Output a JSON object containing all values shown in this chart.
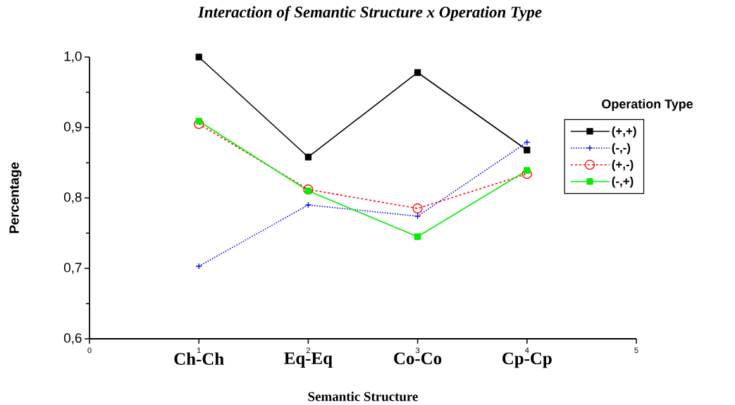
{
  "chart_data": {
    "type": "line",
    "title": "Interaction of Semantic Structure x Operation Type",
    "xlabel": "Semantic Structure",
    "ylabel": "Percentage",
    "legend_title": "Operation Type",
    "x": [
      1,
      2,
      3,
      4
    ],
    "series": [
      {
        "name": "(+,+)",
        "color": "#000000",
        "marker": "square",
        "line_style": "solid",
        "values": [
          1.0,
          0.858,
          0.978,
          0.868
        ]
      },
      {
        "name": "(-,-)",
        "color": "#0000ff",
        "marker": "cross",
        "line_style": "dotted",
        "values": [
          0.703,
          0.79,
          0.774,
          0.879
        ]
      },
      {
        "name": "(+,-)",
        "color": "#ff0000",
        "marker": "circle",
        "line_style": "dashed",
        "values": [
          0.905,
          0.812,
          0.785,
          0.834
        ]
      },
      {
        "name": "(-,+)",
        "color": "#00ee00",
        "marker": "square",
        "line_style": "solid",
        "values": [
          0.909,
          0.81,
          0.745,
          0.839
        ]
      }
    ],
    "xlim": [
      0,
      5
    ],
    "xticks": [
      0,
      1,
      2,
      3,
      4,
      5
    ],
    "ylim": [
      0.6,
      1.0
    ],
    "yticks": [
      {
        "value": 0.6,
        "label": "0,6"
      },
      {
        "value": 0.7,
        "label": "0,7"
      },
      {
        "value": 0.8,
        "label": "0,8"
      },
      {
        "value": 0.9,
        "label": "0,9"
      },
      {
        "value": 1.0,
        "label": "1,0"
      }
    ],
    "annotations": [
      "Ch-Ch",
      "Eq-Eq",
      "Co-Co",
      "Cp-Cp"
    ],
    "grid": false,
    "legend": "right"
  }
}
